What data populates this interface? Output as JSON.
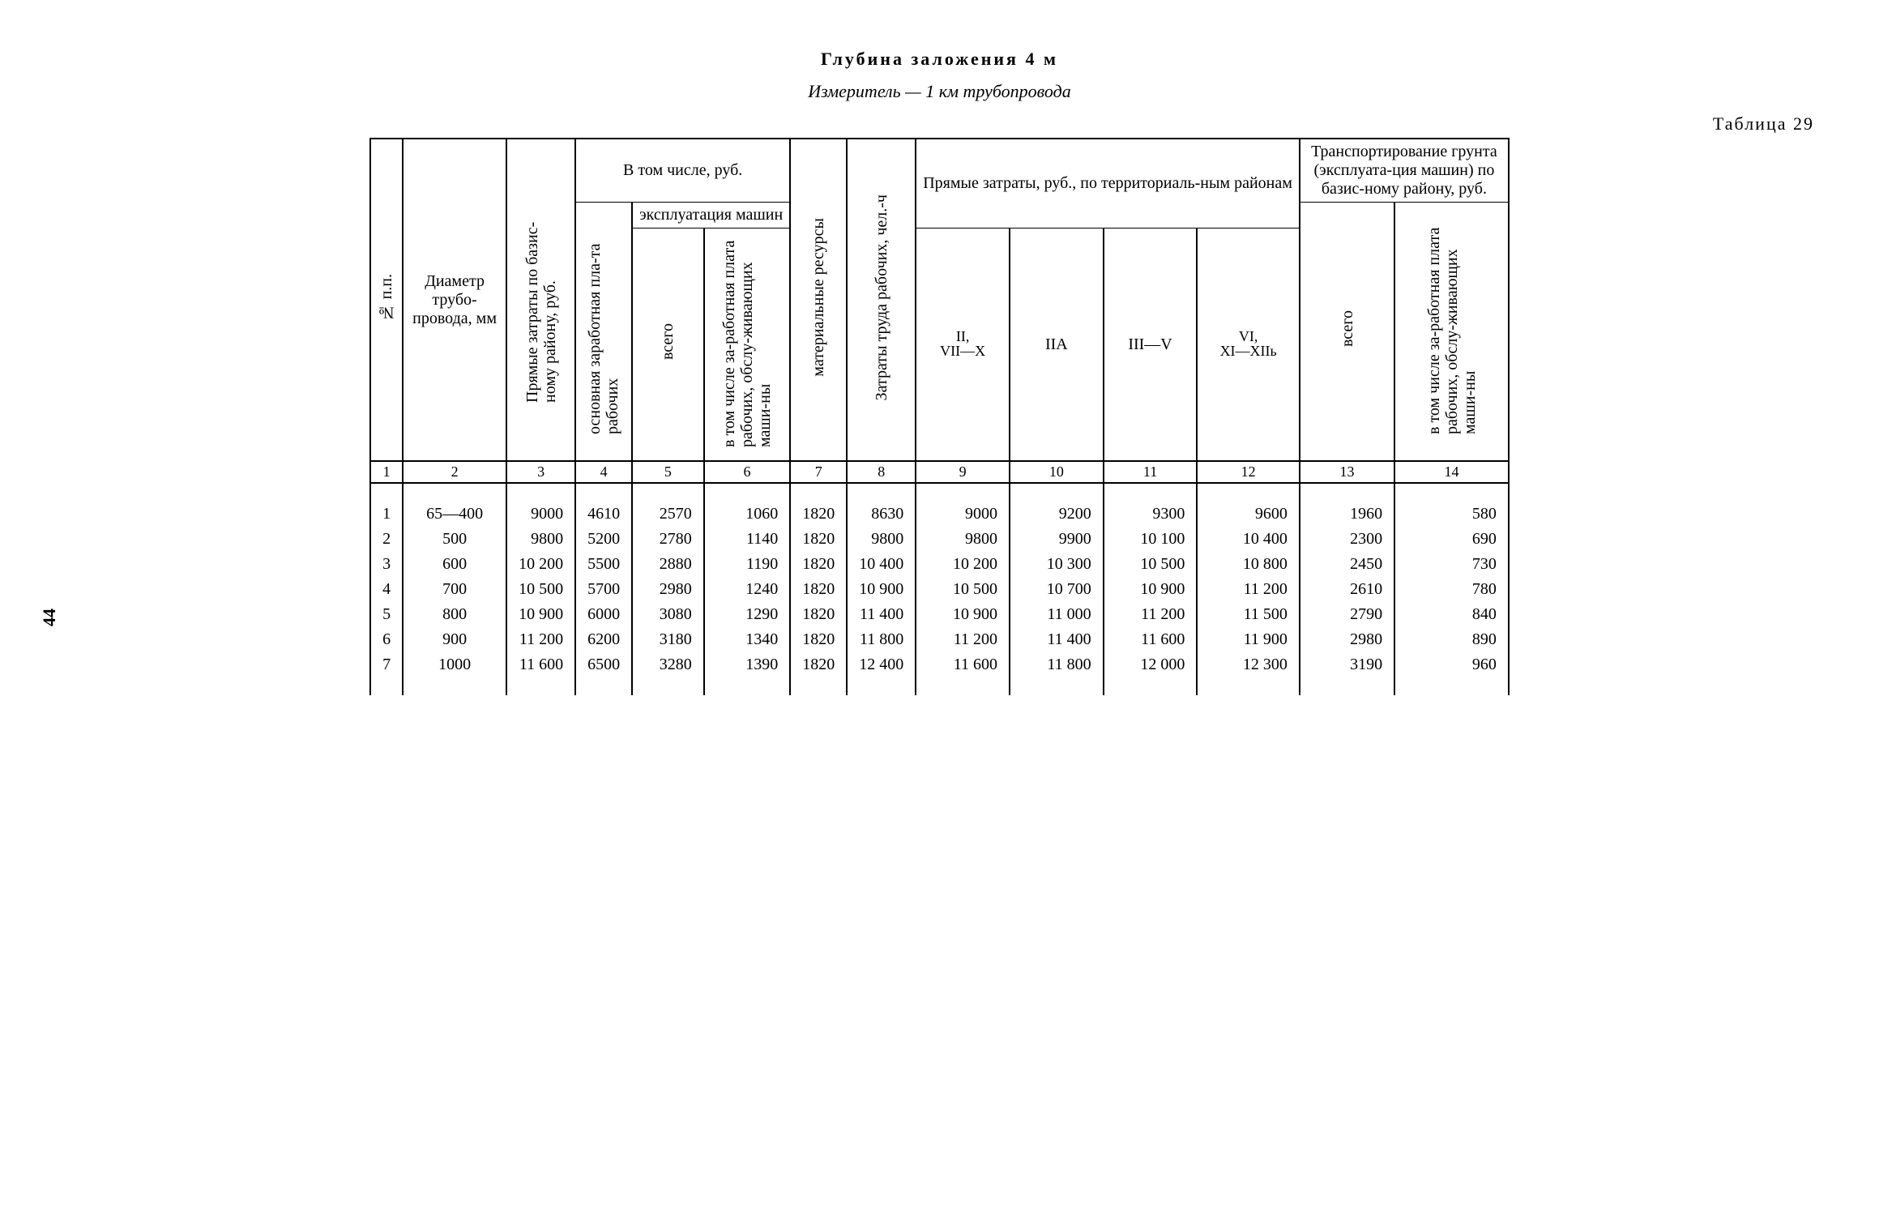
{
  "page_number": "44",
  "title_line1": "Глубина  заложения 4 м",
  "title_line2_prefix": "Измеритель  —  ",
  "title_line2_italic": "1 км трубопровода",
  "table_number": "Таблица 29",
  "headers": {
    "col1": "№ п.п.",
    "col2": "Диаметр трубо-провода, мм",
    "col3": "Прямые затраты по базис-ному району, руб.",
    "group_v_tom_chisle": "В том числе, руб.",
    "col4": "основная заработная пла-та рабочих",
    "group_ekspl": "эксплуатация машин",
    "col5": "всего",
    "col6": "в том числе за-работная плата рабочих, обслу-живающих маши-ны",
    "col7": "материальные ресурсы",
    "col8": "Затраты труда рабочих, чел.-ч",
    "group_territ": "Прямые затраты, руб., по территориаль-ным районам",
    "col9_top": "II,",
    "col9_bot": "VII—X",
    "col10": "IIА",
    "col11": "III—V",
    "col12_top": "VI,",
    "col12_bot": "XI—XIIь",
    "group_transport": "Транспортирование грунта (эксплуата-ция машин) по базис-ному району, руб.",
    "col13": "всего",
    "col14": "в том числе за-работная плата рабочих, обслу-живающих маши-ны"
  },
  "colnums": [
    "1",
    "2",
    "3",
    "4",
    "5",
    "6",
    "7",
    "8",
    "9",
    "10",
    "11",
    "12",
    "13",
    "14"
  ],
  "rows": [
    {
      "n": "1",
      "d": "65—400",
      "c3": "9000",
      "c4": "4610",
      "c5": "2570",
      "c6": "1060",
      "c7": "1820",
      "c8": "8630",
      "c9": "9000",
      "c10": "9200",
      "c11": "9300",
      "c12": "9600",
      "c13": "1960",
      "c14": "580"
    },
    {
      "n": "2",
      "d": "500",
      "c3": "9800",
      "c4": "5200",
      "c5": "2780",
      "c6": "1140",
      "c7": "1820",
      "c8": "9800",
      "c9": "9800",
      "c10": "9900",
      "c11": "10 100",
      "c12": "10 400",
      "c13": "2300",
      "c14": "690"
    },
    {
      "n": "3",
      "d": "600",
      "c3": "10 200",
      "c4": "5500",
      "c5": "2880",
      "c6": "1190",
      "c7": "1820",
      "c8": "10 400",
      "c9": "10 200",
      "c10": "10 300",
      "c11": "10 500",
      "c12": "10 800",
      "c13": "2450",
      "c14": "730"
    },
    {
      "n": "4",
      "d": "700",
      "c3": "10 500",
      "c4": "5700",
      "c5": "2980",
      "c6": "1240",
      "c7": "1820",
      "c8": "10 900",
      "c9": "10 500",
      "c10": "10 700",
      "c11": "10 900",
      "c12": "11 200",
      "c13": "2610",
      "c14": "780"
    },
    {
      "n": "5",
      "d": "800",
      "c3": "10 900",
      "c4": "6000",
      "c5": "3080",
      "c6": "1290",
      "c7": "1820",
      "c8": "11 400",
      "c9": "10 900",
      "c10": "11 000",
      "c11": "11 200",
      "c12": "11 500",
      "c13": "2790",
      "c14": "840"
    },
    {
      "n": "6",
      "d": "900",
      "c3": "11 200",
      "c4": "6200",
      "c5": "3180",
      "c6": "1340",
      "c7": "1820",
      "c8": "11 800",
      "c9": "11 200",
      "c10": "11 400",
      "c11": "11 600",
      "c12": "11 900",
      "c13": "2980",
      "c14": "890"
    },
    {
      "n": "7",
      "d": "1000",
      "c3": "11 600",
      "c4": "6500",
      "c5": "3280",
      "c6": "1390",
      "c7": "1820",
      "c8": "12 400",
      "c9": "11 600",
      "c10": "11 800",
      "c11": "12 000",
      "c12": "12 300",
      "c13": "3190",
      "c14": "960"
    }
  ]
}
